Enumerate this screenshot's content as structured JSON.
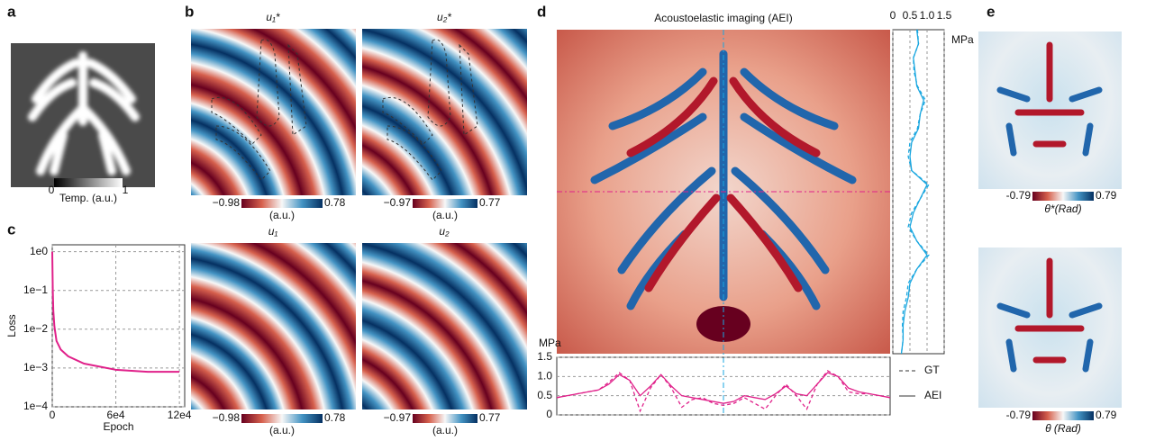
{
  "panels": {
    "a": {
      "label": "a",
      "colorbar": {
        "min": "0",
        "max": "1",
        "caption": "Temp. (a.u.)"
      }
    },
    "b": {
      "label": "b",
      "fields": [
        {
          "title": "u₁*",
          "colorbar": {
            "min": "−0.98",
            "max": "0.78",
            "caption": "(a.u.)"
          }
        },
        {
          "title": "u₂*",
          "colorbar": {
            "min": "−0.97",
            "max": "0.77",
            "caption": "(a.u.)"
          }
        },
        {
          "title": "u₁",
          "colorbar": {
            "min": "−0.98",
            "max": "0.78",
            "caption": "(a.u.)"
          }
        },
        {
          "title": "u₂",
          "colorbar": {
            "min": "−0.97",
            "max": "0.77",
            "caption": "(a.u.)"
          }
        }
      ]
    },
    "c": {
      "label": "c"
    },
    "d": {
      "label": "d",
      "title": "Acoustoelastic imaging (AEI)"
    },
    "e": {
      "label": "e",
      "fields": [
        {
          "colorbar": {
            "min": "-0.79",
            "max": "0.79",
            "caption": "θ*(Rad)"
          }
        },
        {
          "colorbar": {
            "min": "-0.79",
            "max": "0.79",
            "caption": "θ (Rad)"
          }
        }
      ]
    }
  },
  "chart_data": [
    {
      "type": "line",
      "x_label": "Epoch",
      "y_label": "Loss",
      "log_scale_y": true,
      "grid": true,
      "x": [
        0,
        500,
        1000,
        2000,
        4000,
        8000,
        15000,
        30000,
        60000,
        90000,
        120000
      ],
      "series": [
        {
          "color": "#e0218a",
          "values": [
            1,
            0.1,
            0.03,
            0.012,
            0.005,
            0.003,
            0.002,
            0.0013,
            0.0009,
            0.0008,
            0.0008
          ]
        }
      ],
      "xlim": [
        0,
        125000
      ],
      "ylim": [
        0.0001,
        1.5
      ],
      "xticks": [
        0,
        {
          "value": 60000,
          "label": "6e4"
        },
        {
          "value": 120000,
          "label": "12e4"
        }
      ],
      "yticks": [
        {
          "value": 1,
          "label": "1e0"
        },
        {
          "value": 0.1,
          "label": "1e−1"
        },
        {
          "value": 0.01,
          "label": "1e−2"
        },
        {
          "value": 0.001,
          "label": "1e−3"
        },
        {
          "value": 0.0001,
          "label": "1e−4"
        }
      ]
    },
    {
      "type": "line",
      "y_label": "MPa",
      "grid": true,
      "ylim": [
        0,
        1.5
      ],
      "yticks": [
        0,
        0.5,
        {
          "value": 1,
          "label": "1.0"
        },
        1.5
      ],
      "series": [
        {
          "name": "GT",
          "color": "#e0218a",
          "dashed": true,
          "values": [
            0.45,
            0.5,
            0.55,
            0.6,
            0.65,
            0.85,
            1.1,
            0.9,
            0.1,
            0.7,
            1.05,
            0.7,
            0.2,
            0.4,
            0.45,
            0.3,
            0.25,
            0.3,
            0.45,
            0.3,
            0.15,
            0.5,
            0.8,
            0.5,
            0.15,
            0.8,
            1.15,
            1.0,
            0.6,
            0.55,
            0.55,
            0.5,
            0.45
          ]
        },
        {
          "name": "AEI",
          "color": "#e0218a",
          "dashed": false,
          "values": [
            0.45,
            0.5,
            0.55,
            0.6,
            0.65,
            0.8,
            1.05,
            0.9,
            0.5,
            0.75,
            1.05,
            0.75,
            0.5,
            0.45,
            0.4,
            0.35,
            0.3,
            0.35,
            0.5,
            0.45,
            0.4,
            0.55,
            0.75,
            0.55,
            0.5,
            0.8,
            1.1,
            1.0,
            0.7,
            0.6,
            0.55,
            0.5,
            0.45
          ]
        }
      ]
    },
    {
      "type": "line",
      "orientation": "vertical",
      "x_label": "MPa",
      "grid": true,
      "xlim": [
        0,
        1.5
      ],
      "xticks": [
        0,
        0.5,
        {
          "value": 1,
          "label": "1.0"
        },
        1.5
      ],
      "series": [
        {
          "color": "#1aa7e0",
          "dashed": true,
          "values": [
            0.72,
            0.75,
            0.6,
            0.62,
            0.72,
            0.95,
            0.8,
            0.72,
            0.5,
            0.45,
            0.55,
            1.05,
            0.8,
            0.55,
            0.45,
            0.7,
            1.05,
            0.7,
            0.45,
            0.4,
            0.3,
            0.28,
            0.3,
            0.25
          ]
        },
        {
          "color": "#1aa7e0",
          "dashed": false,
          "values": [
            0.7,
            0.75,
            0.6,
            0.65,
            0.7,
            0.9,
            0.8,
            0.75,
            0.55,
            0.5,
            0.55,
            1.0,
            0.8,
            0.6,
            0.5,
            0.7,
            1.0,
            0.7,
            0.5,
            0.45,
            0.35,
            0.3,
            0.3,
            0.25
          ]
        }
      ]
    }
  ]
}
